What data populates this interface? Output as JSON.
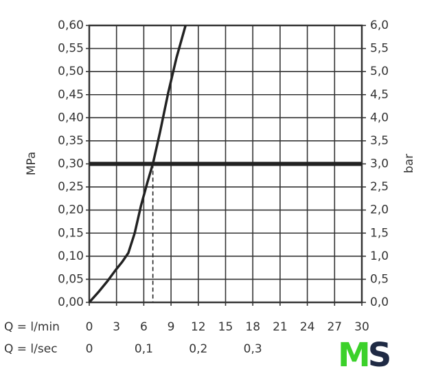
{
  "chart_data": {
    "type": "line",
    "xlabel": "Q = l/min",
    "x2label": "Q = l/sec",
    "ylabel": "MPa",
    "y2label": "bar",
    "x": [
      0,
      1,
      2,
      2.9,
      3.6,
      4.3,
      5,
      5.7,
      6.4,
      7,
      7.8,
      8.7,
      9.6,
      10.6
    ],
    "series": [
      {
        "color": "#222222",
        "values": [
          0,
          0.022,
          0.046,
          0.07,
          0.087,
          0.107,
          0.15,
          0.21,
          0.26,
          0.3,
          0.37,
          0.455,
          0.53,
          0.6
        ]
      }
    ],
    "xlim": [
      0,
      30
    ],
    "xticks": [
      0,
      3,
      6,
      9,
      12,
      15,
      18,
      21,
      24,
      27,
      30
    ],
    "x2lim": [
      0,
      0.5
    ],
    "x2ticks": [
      0,
      {
        "value": 0.1,
        "label": "0,1"
      },
      {
        "value": 0.2,
        "label": "0,2"
      },
      {
        "value": 0.3,
        "label": "0,3"
      }
    ],
    "ylim": [
      0,
      0.6
    ],
    "yticks": [
      {
        "value": 0,
        "label": "0,00"
      },
      {
        "value": 0.05,
        "label": "0,05"
      },
      {
        "value": 0.1,
        "label": "0,10"
      },
      {
        "value": 0.15,
        "label": "0,15"
      },
      {
        "value": 0.2,
        "label": "0,20"
      },
      {
        "value": 0.25,
        "label": "0,25"
      },
      {
        "value": 0.3,
        "label": "0,30"
      },
      {
        "value": 0.35,
        "label": "0,35"
      },
      {
        "value": 0.4,
        "label": "0,40"
      },
      {
        "value": 0.45,
        "label": "0,45"
      },
      {
        "value": 0.5,
        "label": "0,50"
      },
      {
        "value": 0.55,
        "label": "0,55"
      },
      {
        "value": 0.6,
        "label": "0,60"
      }
    ],
    "y2lim": [
      0,
      6
    ],
    "y2ticks": [
      {
        "value": 0,
        "label": "0,0"
      },
      {
        "value": 0.5,
        "label": "0,5"
      },
      {
        "value": 1,
        "label": "1,0"
      },
      {
        "value": 1.5,
        "label": "1,5"
      },
      {
        "value": 2,
        "label": "2,0"
      },
      {
        "value": 2.5,
        "label": "2,5"
      },
      {
        "value": 3,
        "label": "3,0"
      },
      {
        "value": 3.5,
        "label": "3,5"
      },
      {
        "value": 4,
        "label": "4,0"
      },
      {
        "value": 4.5,
        "label": "4,5"
      },
      {
        "value": 5,
        "label": "5,0"
      },
      {
        "value": 5.5,
        "label": "5,5"
      },
      {
        "value": 6,
        "label": "6,0"
      }
    ],
    "grid": true,
    "reference_line": {
      "y": 0.3,
      "color": "#222222"
    },
    "dashed_line": {
      "x": 7
    },
    "logo": {
      "first": "M",
      "second": "S"
    }
  }
}
